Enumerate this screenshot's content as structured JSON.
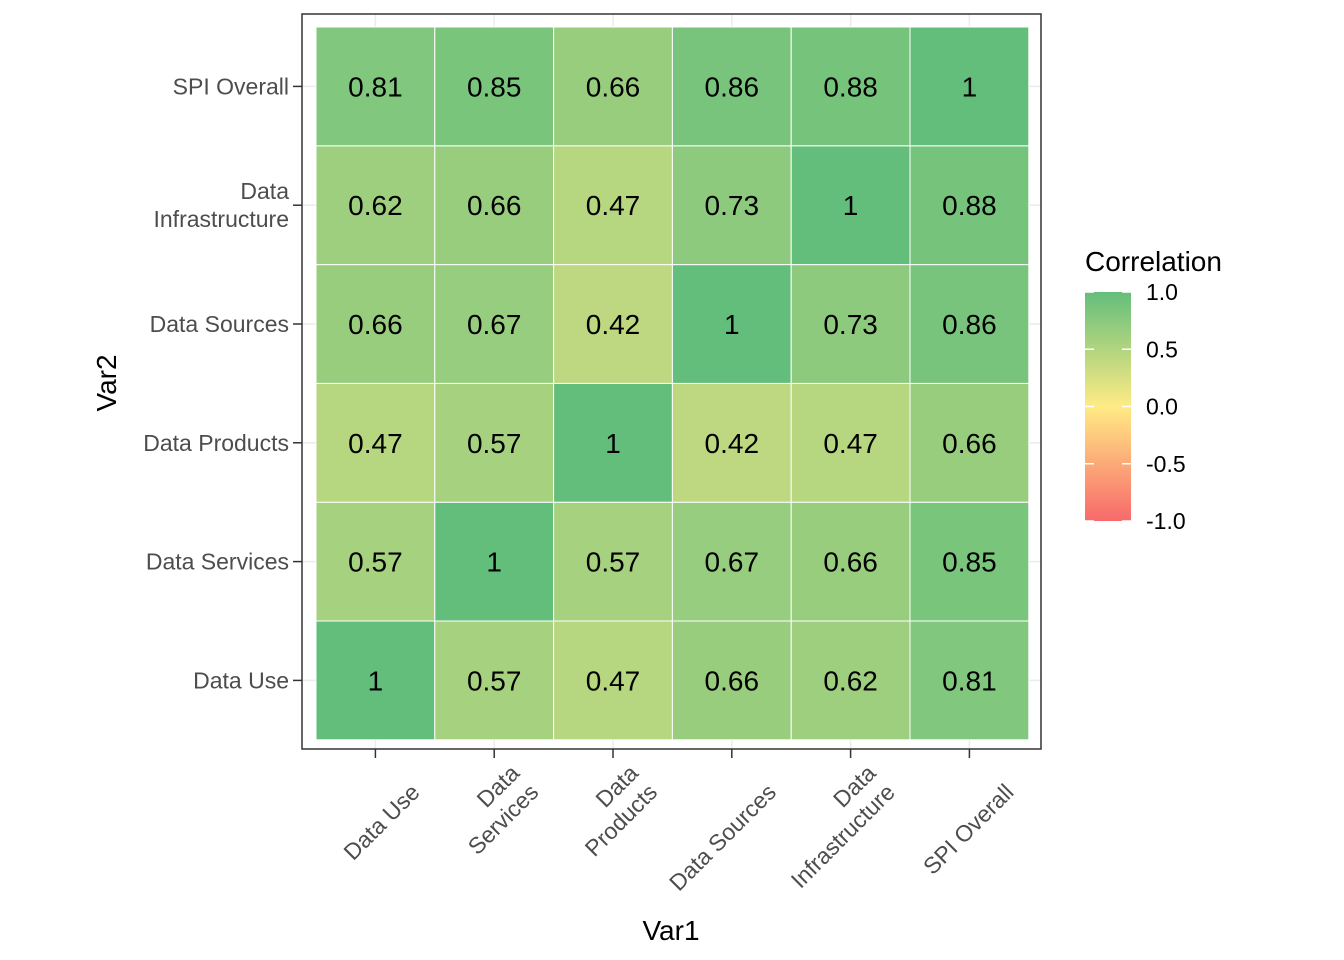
{
  "chart_data": {
    "type": "heatmap",
    "title": "",
    "xlabel": "Var1",
    "ylabel": "Var2",
    "x_categories": [
      [
        "Data Use"
      ],
      [
        "Data",
        "Services"
      ],
      [
        "Data",
        "Products"
      ],
      [
        "Data Sources"
      ],
      [
        "Data",
        "Infrastructure"
      ],
      [
        "SPI Overall"
      ]
    ],
    "y_categories": [
      [
        "Data Use"
      ],
      [
        "Data Services"
      ],
      [
        "Data Products"
      ],
      [
        "Data Sources"
      ],
      [
        "Data",
        "Infrastructure"
      ],
      [
        "SPI Overall"
      ]
    ],
    "values": [
      [
        1,
        0.57,
        0.47,
        0.66,
        0.62,
        0.81
      ],
      [
        0.57,
        1,
        0.57,
        0.67,
        0.66,
        0.85
      ],
      [
        0.47,
        0.57,
        1,
        0.42,
        0.47,
        0.66
      ],
      [
        0.66,
        0.67,
        0.42,
        1,
        0.73,
        0.86
      ],
      [
        0.62,
        0.66,
        0.47,
        0.73,
        1,
        0.88
      ],
      [
        0.81,
        0.85,
        0.66,
        0.86,
        0.88,
        1
      ]
    ],
    "value_labels": [
      [
        "1",
        "0.57",
        "0.47",
        "0.66",
        "0.62",
        "0.81"
      ],
      [
        "0.57",
        "1",
        "0.57",
        "0.67",
        "0.66",
        "0.85"
      ],
      [
        "0.47",
        "0.57",
        "1",
        "0.42",
        "0.47",
        "0.66"
      ],
      [
        "0.66",
        "0.67",
        "0.42",
        "1",
        "0.73",
        "0.86"
      ],
      [
        "0.62",
        "0.66",
        "0.47",
        "0.73",
        "1",
        "0.88"
      ],
      [
        "0.81",
        "0.85",
        "0.66",
        "0.86",
        "0.88",
        "1"
      ]
    ],
    "color_scale": {
      "low": "#f8696b",
      "mid": "#ffeb84",
      "high": "#63be7b",
      "limits": [
        -1,
        1
      ]
    },
    "legend": {
      "title": "Correlation",
      "placement": "right",
      "breaks": [
        1.0,
        0.5,
        0.0,
        -0.5,
        -1.0
      ],
      "break_labels": [
        "1.0",
        "0.5",
        "0.0",
        "-0.5",
        "-1.0"
      ]
    },
    "grid": true
  }
}
